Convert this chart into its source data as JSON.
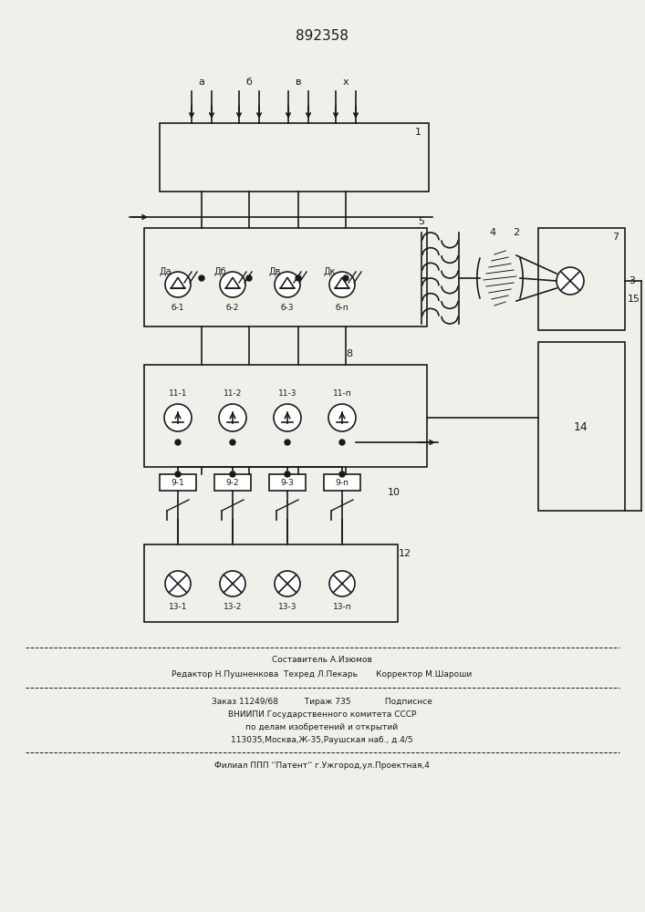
{
  "title": "892358",
  "bg_color": "#f0f0eb",
  "line_color": "#1a1a1a",
  "title_fontsize": 11,
  "footer_line1": "Составитель А.Изюмов",
  "footer_line2": "Редактор Н.Пушненкова  Техред Л.Пекарь       Корректор М.Шароши",
  "footer_line3": "Заказ 11249/68          Тираж 735             Подписнсе",
  "footer_line4": "ВНИИПИ Государственного комитета СССР",
  "footer_line5": "по делам изобретений и открытий",
  "footer_line6": "113035,Москва,Ж-35,Раушская наб., д.4/5",
  "footer_line7": "Филиал ППП ''Патент'' г.Ужгород,ул.Проектная,4"
}
